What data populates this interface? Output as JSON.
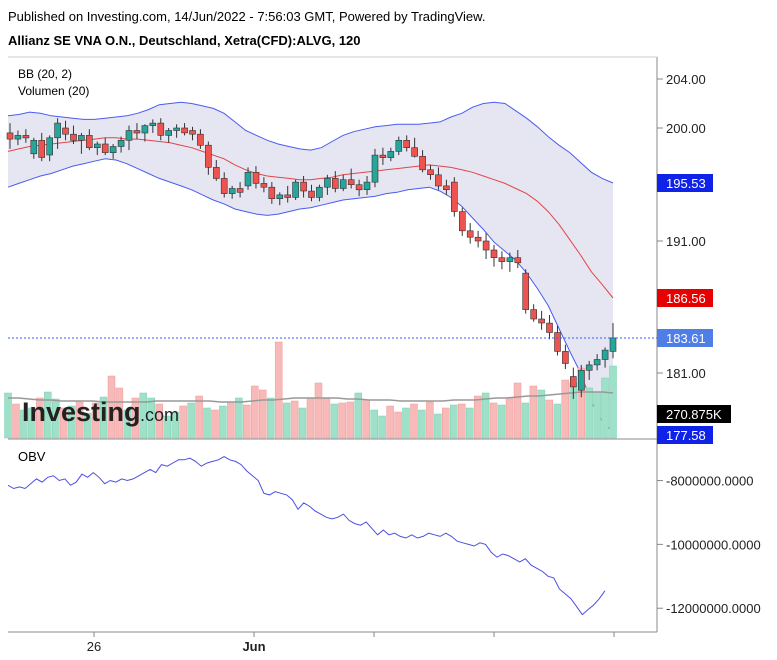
{
  "header": {
    "published": "Published on Investing.com, 14/Jun/2022 - 7:56:03 GMT, Powered by TradingView.",
    "title": "Allianz SE VNA O.N., Deutschland, Xetra(CFD):ALVG, 120"
  },
  "watermark": "Investing.com",
  "colors": {
    "up": "#26a69a",
    "down": "#ef5350",
    "band_fill": "#e6e6f3",
    "band_line": "#4a5cf0",
    "basis": "#e04646",
    "obv": "#4b4fe0",
    "vol_up": "#9fe1c8",
    "vol_down": "#f8b9b9"
  },
  "chart_data": [
    {
      "type": "candlestick",
      "title": "Allianz SE VNA O.N., Deutschland, Xetra(CFD):ALVG, 120",
      "indicators": [
        "BB (20, 2)",
        "Volumen (20)"
      ],
      "yticks": [
        "204.00",
        "200.00",
        "191.00",
        "181.00"
      ],
      "xticks": [
        "26",
        "Jun"
      ],
      "price_labels": {
        "bb_upper": "195.53",
        "bb_basis": "186.56",
        "last": "183.61",
        "bb_lower": "177.58",
        "volume_ma": "270.875K"
      },
      "candles": [
        [
          199.6,
          200.4,
          198.3,
          199.1
        ],
        [
          199.1,
          199.8,
          198.6,
          199.4
        ],
        [
          199.4,
          199.9,
          198.8,
          199.2
        ],
        [
          197.9,
          199.2,
          197.5,
          199.0
        ],
        [
          199.0,
          199.6,
          197.3,
          197.6
        ],
        [
          197.8,
          199.4,
          197.3,
          199.2
        ],
        [
          199.2,
          200.8,
          198.3,
          200.4
        ],
        [
          200.0,
          200.6,
          199.0,
          199.5
        ],
        [
          199.5,
          200.2,
          198.7,
          199.0
        ],
        [
          199.0,
          199.6,
          197.9,
          199.4
        ],
        [
          199.4,
          199.9,
          198.2,
          198.4
        ],
        [
          198.4,
          198.9,
          197.8,
          198.7
        ],
        [
          198.7,
          199.2,
          197.8,
          198.0
        ],
        [
          198.0,
          198.7,
          197.5,
          198.5
        ],
        [
          198.5,
          199.3,
          198.0,
          199.0
        ],
        [
          199.0,
          200.2,
          198.2,
          199.8
        ],
        [
          199.8,
          200.4,
          199.1,
          199.6
        ],
        [
          199.6,
          200.3,
          198.9,
          200.2
        ],
        [
          200.2,
          200.7,
          199.6,
          200.4
        ],
        [
          200.4,
          200.8,
          199.0,
          199.4
        ],
        [
          199.4,
          200.0,
          198.8,
          199.8
        ],
        [
          199.8,
          200.3,
          199.2,
          200.0
        ],
        [
          200.0,
          200.4,
          199.4,
          199.6
        ],
        [
          199.8,
          200.1,
          199.0,
          199.5
        ],
        [
          199.5,
          199.9,
          198.3,
          198.6
        ],
        [
          198.6,
          198.9,
          196.2,
          196.8
        ],
        [
          196.8,
          197.4,
          195.7,
          195.9
        ],
        [
          195.9,
          196.4,
          194.4,
          194.7
        ],
        [
          194.7,
          195.3,
          194.3,
          195.1
        ],
        [
          195.1,
          195.6,
          194.4,
          194.8
        ],
        [
          195.3,
          196.8,
          195.0,
          196.4
        ],
        [
          196.4,
          196.9,
          195.1,
          195.5
        ],
        [
          195.5,
          196.0,
          194.8,
          195.2
        ],
        [
          195.2,
          195.6,
          193.9,
          194.3
        ],
        [
          194.3,
          194.8,
          193.8,
          194.6
        ],
        [
          194.6,
          195.3,
          194.0,
          194.4
        ],
        [
          194.4,
          195.8,
          194.2,
          195.6
        ],
        [
          195.6,
          196.1,
          194.4,
          194.9
        ],
        [
          194.9,
          195.4,
          194.1,
          194.4
        ],
        [
          194.4,
          195.4,
          194.1,
          195.2
        ],
        [
          195.2,
          196.2,
          194.6,
          195.9
        ],
        [
          195.9,
          196.5,
          194.8,
          195.1
        ],
        [
          195.1,
          196.2,
          194.9,
          195.8
        ],
        [
          195.8,
          196.7,
          195.1,
          195.4
        ],
        [
          195.4,
          195.8,
          194.5,
          195.0
        ],
        [
          195.0,
          196.1,
          194.6,
          195.6
        ],
        [
          195.6,
          198.3,
          195.2,
          197.8
        ],
        [
          197.8,
          198.4,
          197.0,
          197.6
        ],
        [
          197.6,
          198.4,
          197.3,
          198.1
        ],
        [
          198.1,
          199.3,
          197.8,
          199.0
        ],
        [
          199.0,
          199.4,
          198.1,
          198.4
        ],
        [
          198.4,
          199.2,
          197.6,
          197.7
        ],
        [
          197.7,
          198.2,
          196.4,
          196.6
        ],
        [
          196.6,
          197.0,
          195.8,
          196.2
        ],
        [
          196.2,
          196.8,
          195.0,
          195.3
        ],
        [
          195.3,
          195.8,
          194.6,
          195.0
        ],
        [
          195.6,
          196.0,
          192.9,
          193.3
        ],
        [
          193.3,
          193.6,
          191.4,
          191.8
        ],
        [
          191.8,
          192.4,
          190.8,
          191.3
        ],
        [
          191.3,
          191.8,
          190.5,
          191.0
        ],
        [
          191.0,
          191.6,
          189.6,
          190.3
        ],
        [
          190.3,
          190.7,
          189.0,
          189.7
        ],
        [
          189.7,
          190.2,
          188.8,
          189.4
        ],
        [
          189.4,
          190.1,
          188.6,
          189.7
        ],
        [
          189.7,
          190.3,
          188.9,
          189.3
        ],
        [
          188.5,
          188.8,
          185.4,
          185.7
        ],
        [
          185.7,
          186.1,
          184.8,
          185.0
        ],
        [
          185.0,
          185.6,
          184.2,
          184.7
        ],
        [
          184.7,
          185.3,
          183.5,
          184.0
        ],
        [
          184.0,
          184.5,
          182.3,
          182.6
        ],
        [
          182.6,
          183.1,
          181.3,
          181.7
        ],
        [
          180.8,
          181.4,
          179.5,
          180.2
        ],
        [
          180.0,
          181.6,
          179.6,
          181.2
        ],
        [
          181.2,
          181.9,
          180.6,
          181.6
        ],
        [
          181.6,
          182.4,
          181.2,
          182.0
        ],
        [
          182.0,
          182.9,
          181.4,
          182.7
        ],
        [
          182.6,
          184.7,
          182.1,
          183.6
        ]
      ],
      "bb_upper": [
        201.0,
        201.1,
        201.3,
        201.2,
        201.0,
        200.9,
        200.8,
        200.7,
        200.7,
        200.8,
        200.9,
        201.0,
        201.2,
        201.5,
        201.9,
        202.0,
        202.1,
        202.0,
        201.8,
        201.6,
        201.2,
        200.5,
        199.8,
        199.4,
        199.0,
        198.7,
        198.5,
        198.3,
        198.2,
        198.4,
        198.9,
        199.4,
        199.7,
        199.9,
        200.1,
        200.2,
        200.3,
        200.3,
        200.3,
        200.4,
        200.5,
        200.9,
        201.2,
        201.7,
        202.0,
        202.1,
        202.0,
        201.4,
        200.8,
        200.1,
        199.3,
        198.6,
        198.0,
        197.2,
        196.4,
        195.9,
        195.53
      ],
      "bb_lower": [
        195.2,
        195.5,
        195.8,
        196.1,
        196.3,
        196.6,
        196.9,
        197.1,
        197.3,
        197.5,
        197.4,
        197.1,
        196.7,
        196.3,
        195.9,
        195.6,
        195.3,
        195.0,
        194.6,
        194.2,
        193.9,
        193.5,
        193.3,
        193.1,
        193.0,
        193.1,
        193.3,
        193.5,
        193.6,
        193.8,
        194.0,
        194.2,
        194.3,
        194.4,
        194.5,
        194.7,
        194.8,
        195.0,
        195.1,
        195.2,
        194.9,
        194.4,
        193.7,
        192.8,
        191.9,
        190.9,
        190.2,
        189.5,
        188.5,
        187.3,
        186.0,
        184.3,
        182.6,
        181.0,
        179.3,
        178.2,
        177.58
      ],
      "bb_basis": [
        198.1,
        198.3,
        198.5,
        198.6,
        198.7,
        198.8,
        198.9,
        199.0,
        199.1,
        199.2,
        199.2,
        199.1,
        199.1,
        199.0,
        198.9,
        198.8,
        198.6,
        198.4,
        198.1,
        197.8,
        197.5,
        197.0,
        196.6,
        196.3,
        196.1,
        196.0,
        195.9,
        195.8,
        195.8,
        195.9,
        196.0,
        196.2,
        196.3,
        196.4,
        196.5,
        196.6,
        196.7,
        196.8,
        196.9,
        197.0,
        196.9,
        196.8,
        196.6,
        196.4,
        196.1,
        195.8,
        195.5,
        195.1,
        194.7,
        194.1,
        193.3,
        192.3,
        191.1,
        189.9,
        188.6,
        187.6,
        186.56
      ],
      "volume": [
        [
          "u",
          0.45
        ],
        [
          "d",
          0.34
        ],
        [
          "u",
          0.28
        ],
        [
          "u",
          0.3
        ],
        [
          "d",
          0.4
        ],
        [
          "u",
          0.46
        ],
        [
          "u",
          0.39
        ],
        [
          "d",
          0.3
        ],
        [
          "u",
          0.32
        ],
        [
          "d",
          0.36
        ],
        [
          "u",
          0.25
        ],
        [
          "d",
          0.35
        ],
        [
          "u",
          0.41
        ],
        [
          "d",
          0.62
        ],
        [
          "d",
          0.5
        ],
        [
          "u",
          0.28
        ],
        [
          "d",
          0.4
        ],
        [
          "u",
          0.45
        ],
        [
          "u",
          0.4
        ],
        [
          "d",
          0.34
        ],
        [
          "u",
          0.22
        ],
        [
          "u",
          0.26
        ],
        [
          "d",
          0.32
        ],
        [
          "u",
          0.35
        ],
        [
          "d",
          0.42
        ],
        [
          "u",
          0.3
        ],
        [
          "d",
          0.28
        ],
        [
          "u",
          0.32
        ],
        [
          "d",
          0.36
        ],
        [
          "u",
          0.4
        ],
        [
          "d",
          0.33
        ],
        [
          "d",
          0.52
        ],
        [
          "d",
          0.48
        ],
        [
          "u",
          0.4
        ],
        [
          "d",
          0.96
        ],
        [
          "u",
          0.35
        ],
        [
          "d",
          0.37
        ],
        [
          "u",
          0.3
        ],
        [
          "d",
          0.4
        ],
        [
          "d",
          0.55
        ],
        [
          "d",
          0.4
        ],
        [
          "u",
          0.34
        ],
        [
          "d",
          0.35
        ],
        [
          "d",
          0.36
        ],
        [
          "u",
          0.45
        ],
        [
          "d",
          0.38
        ],
        [
          "u",
          0.28
        ],
        [
          "u",
          0.22
        ],
        [
          "d",
          0.32
        ],
        [
          "d",
          0.26
        ],
        [
          "u",
          0.3
        ],
        [
          "d",
          0.34
        ],
        [
          "u",
          0.28
        ],
        [
          "d",
          0.36
        ],
        [
          "u",
          0.24
        ],
        [
          "d",
          0.3
        ],
        [
          "u",
          0.33
        ],
        [
          "d",
          0.34
        ],
        [
          "u",
          0.3
        ],
        [
          "d",
          0.42
        ],
        [
          "u",
          0.45
        ],
        [
          "d",
          0.35
        ],
        [
          "u",
          0.33
        ],
        [
          "d",
          0.4
        ],
        [
          "d",
          0.55
        ],
        [
          "u",
          0.35
        ],
        [
          "d",
          0.52
        ],
        [
          "u",
          0.48
        ],
        [
          "d",
          0.38
        ],
        [
          "u",
          0.34
        ],
        [
          "d",
          0.58
        ],
        [
          "u",
          0.55
        ],
        [
          "d",
          0.7
        ],
        [
          "u",
          0.5
        ],
        [
          "u",
          0.46
        ],
        [
          "u",
          0.6
        ],
        [
          "u",
          0.72
        ]
      ],
      "volume_ma": [
        0.4,
        0.4,
        0.39,
        0.38,
        0.38,
        0.37,
        0.37,
        0.37,
        0.37,
        0.36,
        0.36,
        0.36,
        0.36,
        0.36,
        0.37,
        0.37,
        0.37,
        0.37,
        0.37,
        0.37,
        0.36,
        0.36,
        0.36,
        0.37,
        0.38,
        0.38,
        0.39,
        0.4,
        0.4,
        0.4,
        0.4,
        0.4,
        0.39,
        0.39,
        0.38,
        0.38,
        0.38,
        0.37,
        0.37,
        0.37,
        0.37,
        0.37,
        0.38,
        0.38,
        0.38,
        0.39,
        0.4,
        0.4,
        0.41,
        0.42,
        0.42,
        0.43,
        0.44,
        0.45,
        0.46,
        0.46,
        0.46,
        0.45
      ]
    },
    {
      "type": "line",
      "title": "OBV",
      "yticks": [
        "-8000000.0000",
        "-10000000.0000",
        "-12000000.0000"
      ],
      "ylim": [
        -12400000,
        -7200000
      ],
      "values": [
        -8150000,
        -8250000,
        -8200000,
        -8250000,
        -8100000,
        -7950000,
        -8050000,
        -7900000,
        -7850000,
        -8000000,
        -7950000,
        -8150000,
        -8050000,
        -7800000,
        -7900000,
        -7750000,
        -7900000,
        -8100000,
        -8000000,
        -8050000,
        -7950000,
        -8000000,
        -7950000,
        -7850000,
        -7750000,
        -7650000,
        -7750000,
        -7500000,
        -7550000,
        -7450000,
        -7350000,
        -7350000,
        -7300000,
        -7400000,
        -7550000,
        -7450000,
        -7400000,
        -7350000,
        -7250000,
        -7350000,
        -7400000,
        -7500000,
        -7700000,
        -7850000,
        -8000000,
        -8400000,
        -8450000,
        -8350000,
        -8400000,
        -8450000,
        -8600000,
        -8900000,
        -8700000,
        -8800000,
        -8950000,
        -9050000,
        -9150000,
        -9200000,
        -9150000,
        -9050000,
        -9250000,
        -9350000,
        -9400000,
        -9300000,
        -9500000,
        -9700000,
        -9550000,
        -9700000,
        -9650000,
        -9750000,
        -9800000,
        -9700000,
        -9800000,
        -9750000,
        -9650000,
        -9700000,
        -9750000,
        -9650000,
        -9750000,
        -9900000,
        -9950000,
        -10000000,
        -10050000,
        -9950000,
        -10000000,
        -10250000,
        -10400000,
        -10300000,
        -10350000,
        -10450000,
        -10550000,
        -10450000,
        -10650000,
        -10750000,
        -10850000,
        -11000000,
        -11050000,
        -11400000,
        -11550000,
        -11700000,
        -11950000,
        -12200000,
        -12050000,
        -11900000,
        -11700000,
        -11450000
      ],
      "xticks": [
        "26",
        "Jun"
      ]
    }
  ]
}
